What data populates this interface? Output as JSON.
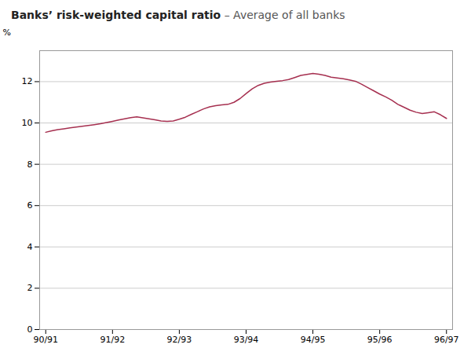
{
  "chart_data": {
    "type": "line",
    "title": "Banks’ risk-weighted capital ratio",
    "subtitle": "– Average of all banks",
    "y_label": "%",
    "x": [
      0,
      1,
      2,
      3,
      4,
      5,
      6,
      7,
      8,
      9,
      10,
      11,
      12,
      13,
      14,
      15,
      16,
      17,
      18,
      19,
      20,
      21,
      22,
      23,
      24,
      25,
      26,
      27,
      28,
      29,
      30,
      31,
      32,
      33,
      34,
      35,
      36,
      37,
      38,
      39,
      40,
      41,
      42,
      43,
      44,
      45,
      46,
      47,
      48,
      49,
      50,
      51,
      52,
      53,
      54,
      55,
      56,
      57,
      58,
      59,
      60,
      61,
      62,
      63,
      64,
      65,
      66
    ],
    "values": [
      9.55,
      9.62,
      9.68,
      9.72,
      9.76,
      9.8,
      9.84,
      9.88,
      9.92,
      9.96,
      10.02,
      10.08,
      10.14,
      10.2,
      10.26,
      10.3,
      10.25,
      10.2,
      10.15,
      10.1,
      10.08,
      10.1,
      10.18,
      10.28,
      10.42,
      10.55,
      10.68,
      10.78,
      10.84,
      10.88,
      10.9,
      11.0,
      11.18,
      11.42,
      11.65,
      11.82,
      11.92,
      11.98,
      12.02,
      12.05,
      12.1,
      12.2,
      12.3,
      12.35,
      12.4,
      12.36,
      12.3,
      12.22,
      12.18,
      12.14,
      12.08,
      12.02,
      11.88,
      11.72,
      11.56,
      11.4,
      11.26,
      11.1,
      10.9,
      10.76,
      10.62,
      10.52,
      10.46,
      10.5,
      10.54,
      10.4,
      10.22
    ],
    "color": "#a63050",
    "xlim": [
      -1,
      67
    ],
    "xticks": [
      {
        "value": 0,
        "label": "90/91"
      },
      {
        "value": 11,
        "label": "91/92"
      },
      {
        "value": 22,
        "label": "92/93"
      },
      {
        "value": 33,
        "label": "93/94"
      },
      {
        "value": 44,
        "label": "94/95"
      },
      {
        "value": 55,
        "label": "95/96"
      },
      {
        "value": 66,
        "label": "96/97"
      }
    ],
    "ylim": [
      0,
      13.5
    ],
    "yticks": [
      0,
      2,
      4,
      6,
      8,
      10,
      12
    ],
    "grid": true
  }
}
